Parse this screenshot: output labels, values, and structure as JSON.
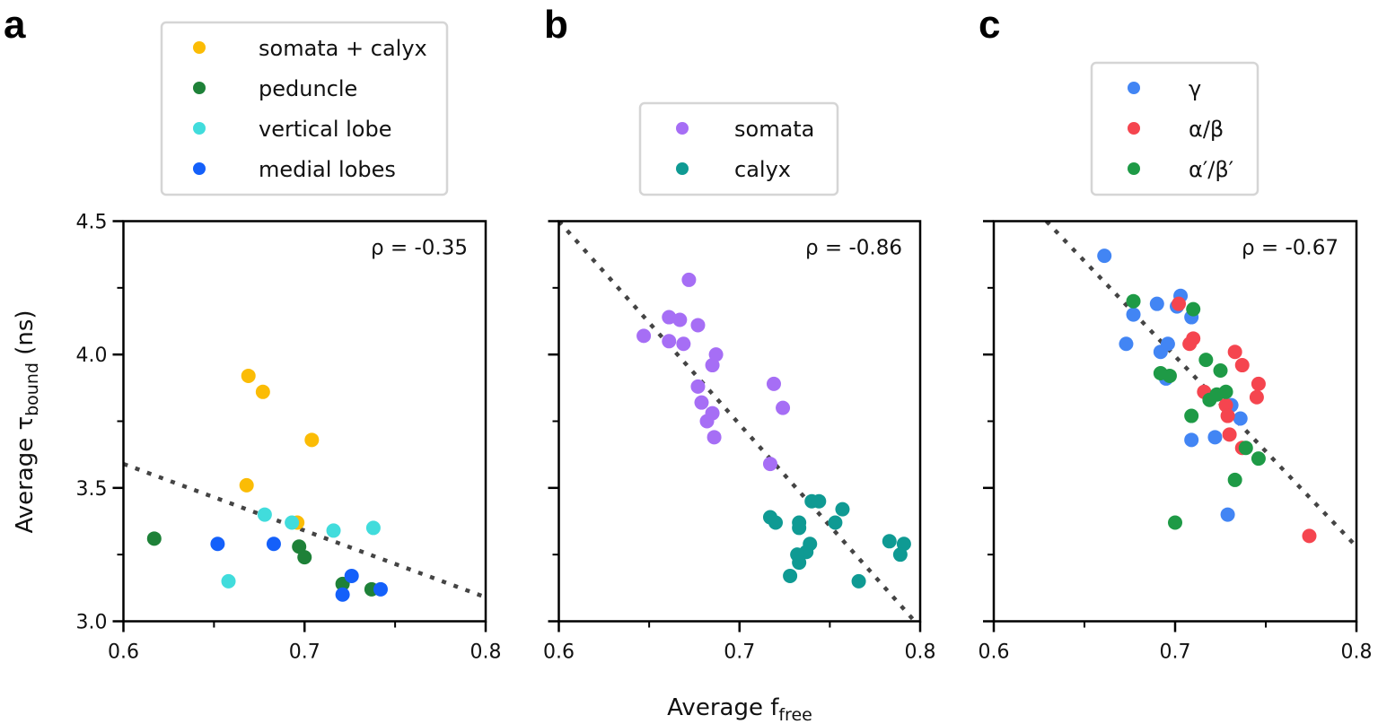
{
  "figure": {
    "xlabel_main": "Average f",
    "xlabel_sub": "free",
    "ylabel_main": "Average τ",
    "ylabel_sub": "bound",
    "ylabel_unit": " (ns)"
  },
  "chart_data": [
    {
      "type": "scatter",
      "panel": "a",
      "title": "",
      "xlabel": "Average f_free",
      "ylabel": "Average τ_bound (ns)",
      "xlim": [
        0.6,
        0.8
      ],
      "ylim": [
        3.0,
        4.5
      ],
      "xticks": [
        "0.6",
        "0.7",
        "0.8"
      ],
      "xtick_values": [
        0.6,
        0.7,
        0.8
      ],
      "xminor": [
        0.65,
        0.75
      ],
      "yticks": [
        "3.0",
        "3.5",
        "4.0",
        "4.5"
      ],
      "ytick_values": [
        3.0,
        3.5,
        4.0,
        4.5
      ],
      "yminor": [
        3.25,
        3.75,
        4.25
      ],
      "show_xticklabels": true,
      "show_yticklabels": true,
      "legend_placement": "above",
      "annotation": "ρ = -0.35",
      "trendline": {
        "x": [
          0.6,
          0.8
        ],
        "y": [
          3.59,
          3.09
        ],
        "style": "dotted"
      },
      "series": [
        {
          "name": "somata + calyx",
          "color": "#FBBC05",
          "points": [
            [
              0.669,
              3.92
            ],
            [
              0.677,
              3.86
            ],
            [
              0.704,
              3.68
            ],
            [
              0.668,
              3.51
            ],
            [
              0.696,
              3.37
            ]
          ]
        },
        {
          "name": "peduncle",
          "color": "#1E8138",
          "points": [
            [
              0.617,
              3.31
            ],
            [
              0.697,
              3.28
            ],
            [
              0.7,
              3.24
            ],
            [
              0.721,
              3.14
            ],
            [
              0.737,
              3.12
            ]
          ]
        },
        {
          "name": "vertical lobe",
          "color": "#41DCDC",
          "points": [
            [
              0.678,
              3.4
            ],
            [
              0.693,
              3.37
            ],
            [
              0.716,
              3.34
            ],
            [
              0.738,
              3.35
            ],
            [
              0.658,
              3.15
            ]
          ]
        },
        {
          "name": "medial lobes",
          "color": "#1460FA",
          "points": [
            [
              0.652,
              3.29
            ],
            [
              0.683,
              3.29
            ],
            [
              0.726,
              3.17
            ],
            [
              0.721,
              3.1
            ],
            [
              0.742,
              3.12
            ]
          ]
        }
      ]
    },
    {
      "type": "scatter",
      "panel": "b",
      "title": "",
      "xlabel": "Average f_free",
      "ylabel": "",
      "xlim": [
        0.6,
        0.8
      ],
      "ylim": [
        3.0,
        4.5
      ],
      "xticks": [
        "0.6",
        "0.7",
        "0.8"
      ],
      "xtick_values": [
        0.6,
        0.7,
        0.8
      ],
      "xminor": [
        0.65,
        0.75
      ],
      "yticks": [],
      "ytick_values": [
        3.0,
        3.5,
        4.0,
        4.5
      ],
      "yminor": [
        3.25,
        3.75,
        4.25
      ],
      "show_xticklabels": true,
      "show_yticklabels": false,
      "legend_placement": "above",
      "annotation": "ρ = -0.86",
      "trendline": {
        "x": [
          0.6,
          0.797
        ],
        "y": [
          4.5,
          3.0
        ],
        "style": "dotted"
      },
      "series": [
        {
          "name": "somata",
          "color": "#A66EF5",
          "points": [
            [
              0.672,
              4.28
            ],
            [
              0.661,
              4.14
            ],
            [
              0.667,
              4.13
            ],
            [
              0.677,
              4.11
            ],
            [
              0.647,
              4.07
            ],
            [
              0.661,
              4.05
            ],
            [
              0.669,
              4.04
            ],
            [
              0.687,
              4.0
            ],
            [
              0.685,
              3.96
            ],
            [
              0.719,
              3.89
            ],
            [
              0.724,
              3.8
            ],
            [
              0.677,
              3.88
            ],
            [
              0.679,
              3.82
            ],
            [
              0.685,
              3.78
            ],
            [
              0.682,
              3.75
            ],
            [
              0.686,
              3.69
            ],
            [
              0.717,
              3.59
            ]
          ]
        },
        {
          "name": "calyx",
          "color": "#0F9A93",
          "points": [
            [
              0.74,
              3.45
            ],
            [
              0.744,
              3.45
            ],
            [
              0.757,
              3.42
            ],
            [
              0.717,
              3.39
            ],
            [
              0.72,
              3.37
            ],
            [
              0.733,
              3.37
            ],
            [
              0.733,
              3.35
            ],
            [
              0.753,
              3.37
            ],
            [
              0.739,
              3.29
            ],
            [
              0.737,
              3.26
            ],
            [
              0.732,
              3.25
            ],
            [
              0.733,
              3.22
            ],
            [
              0.783,
              3.3
            ],
            [
              0.791,
              3.29
            ],
            [
              0.789,
              3.25
            ],
            [
              0.728,
              3.17
            ],
            [
              0.766,
              3.15
            ]
          ]
        }
      ]
    },
    {
      "type": "scatter",
      "panel": "c",
      "title": "",
      "xlabel": "Average f_free",
      "ylabel": "",
      "xlim": [
        0.6,
        0.8
      ],
      "ylim": [
        3.0,
        4.5
      ],
      "xticks": [
        "0.6",
        "0.7",
        "0.8"
      ],
      "xtick_values": [
        0.6,
        0.7,
        0.8
      ],
      "xminor": [
        0.65,
        0.75
      ],
      "yticks": [],
      "ytick_values": [
        3.0,
        3.5,
        4.0,
        4.5
      ],
      "yminor": [
        3.25,
        3.75,
        4.25
      ],
      "show_xticklabels": true,
      "show_yticklabels": false,
      "legend_placement": "above",
      "annotation": "ρ = -0.67",
      "trendline": {
        "x": [
          0.629,
          0.8
        ],
        "y": [
          4.5,
          3.28
        ],
        "style": "dotted"
      },
      "series": [
        {
          "name": "γ",
          "color": "#4285F4",
          "points": [
            [
              0.661,
              4.37
            ],
            [
              0.677,
              4.15
            ],
            [
              0.69,
              4.19
            ],
            [
              0.703,
              4.22
            ],
            [
              0.701,
              4.18
            ],
            [
              0.709,
              4.14
            ],
            [
              0.673,
              4.04
            ],
            [
              0.696,
              4.04
            ],
            [
              0.692,
              4.01
            ],
            [
              0.695,
              3.91
            ],
            [
              0.731,
              3.81
            ],
            [
              0.736,
              3.76
            ],
            [
              0.709,
              3.68
            ],
            [
              0.722,
              3.69
            ],
            [
              0.729,
              3.4
            ]
          ]
        },
        {
          "name": "α/β",
          "color": "#F5454F",
          "points": [
            [
              0.702,
              4.19
            ],
            [
              0.71,
              4.06
            ],
            [
              0.708,
              4.04
            ],
            [
              0.733,
              4.01
            ],
            [
              0.737,
              3.96
            ],
            [
              0.746,
              3.89
            ],
            [
              0.745,
              3.84
            ],
            [
              0.716,
              3.86
            ],
            [
              0.728,
              3.81
            ],
            [
              0.729,
              3.77
            ],
            [
              0.73,
              3.7
            ],
            [
              0.737,
              3.65
            ],
            [
              0.774,
              3.32
            ]
          ]
        },
        {
          "name": "α′/β′",
          "color": "#1E9A46",
          "points": [
            [
              0.677,
              4.2
            ],
            [
              0.71,
              4.17
            ],
            [
              0.717,
              3.98
            ],
            [
              0.725,
              3.94
            ],
            [
              0.692,
              3.93
            ],
            [
              0.697,
              3.92
            ],
            [
              0.728,
              3.86
            ],
            [
              0.723,
              3.85
            ],
            [
              0.719,
              3.83
            ],
            [
              0.709,
              3.77
            ],
            [
              0.739,
              3.65
            ],
            [
              0.746,
              3.61
            ],
            [
              0.733,
              3.53
            ],
            [
              0.7,
              3.37
            ]
          ]
        }
      ]
    }
  ]
}
